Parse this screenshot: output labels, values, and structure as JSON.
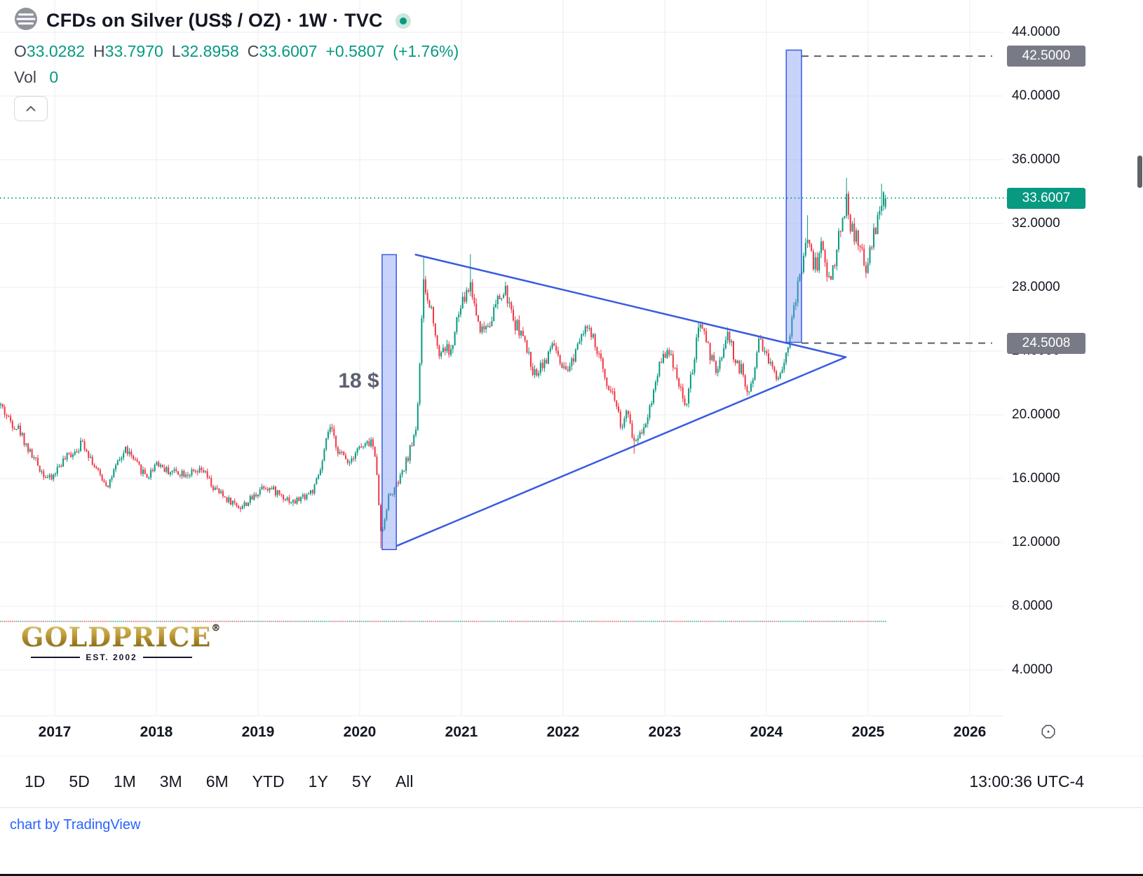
{
  "header": {
    "title": "CFDs on Silver (US$ / OZ) · 1W · TVC",
    "ohlc": {
      "o_label": "O",
      "o": "33.0282",
      "h_label": "H",
      "h": "33.7970",
      "l_label": "L",
      "l": "32.8958",
      "c_label": "C",
      "c": "33.6007",
      "change": "+0.5807",
      "change_pct": "(+1.76%)"
    },
    "vol_label": "Vol",
    "vol_value": "0"
  },
  "price_scale": {
    "ticks": [
      "44.0000",
      "40.0000",
      "36.0000",
      "32.0000",
      "28.0000",
      "24.0000",
      "20.0000",
      "16.0000",
      "12.0000",
      "8.0000",
      "4.0000"
    ],
    "tick_values": [
      44,
      40,
      36,
      32,
      28,
      24,
      20,
      16,
      12,
      8,
      4
    ],
    "badges": [
      {
        "text": "42.5000",
        "value": 42.5,
        "type": "gray"
      },
      {
        "text": "33.6007",
        "value": 33.6007,
        "type": "green"
      },
      {
        "text": "24.5008",
        "value": 24.5008,
        "type": "gray"
      }
    ]
  },
  "time_scale": {
    "years": [
      "2017",
      "2018",
      "2019",
      "2020",
      "2021",
      "2022",
      "2023",
      "2024",
      "2025",
      "2026"
    ],
    "year_values": [
      2017,
      2018,
      2019,
      2020,
      2021,
      2022,
      2023,
      2024,
      2025,
      2026
    ]
  },
  "toolbar": {
    "ranges": [
      "1D",
      "5D",
      "1M",
      "3M",
      "6M",
      "YTD",
      "1Y",
      "5Y",
      "All"
    ],
    "clock": "13:00:36 UTC-4"
  },
  "footer": {
    "link": "chart by TradingView"
  },
  "watermark": {
    "brand": "GOLDPRICE",
    "reg": "®",
    "est": "EST. 2002"
  },
  "colors": {
    "up": "#089981",
    "down": "#f23645",
    "grid": "#eceef2",
    "drawing_blue": "#3a5be0",
    "box_fill": "rgba(110,140,248,0.38)",
    "dashed_gray": "#5a5f6a",
    "current_price": "#089981"
  },
  "chart_data": {
    "type": "candlestick",
    "symbol": "CFDs on Silver (US$ / OZ)",
    "interval": "1W",
    "exchange": "TVC",
    "x_range_years": [
      2016.47,
      2026.45
    ],
    "y_axis_range_visible": [
      1.2,
      46.0
    ],
    "grid": true,
    "last_price": 33.6007,
    "last_candle": {
      "open": 33.0282,
      "high": 33.797,
      "low": 32.8958,
      "close": 33.6007
    },
    "volume": {
      "value": 0,
      "baseline_price": 7.05
    },
    "anchors": [
      [
        2016.47,
        20.6
      ],
      [
        2016.55,
        19.7
      ],
      [
        2016.65,
        19.1
      ],
      [
        2016.75,
        17.7
      ],
      [
        2016.88,
        16.4
      ],
      [
        2016.96,
        15.9
      ],
      [
        2017.05,
        16.9
      ],
      [
        2017.15,
        17.5
      ],
      [
        2017.28,
        18.3
      ],
      [
        2017.42,
        16.4
      ],
      [
        2017.52,
        15.6
      ],
      [
        2017.62,
        16.9
      ],
      [
        2017.7,
        17.9
      ],
      [
        2017.8,
        16.9
      ],
      [
        2017.92,
        16.1
      ],
      [
        2018.0,
        17.1
      ],
      [
        2018.1,
        16.5
      ],
      [
        2018.25,
        16.4
      ],
      [
        2018.38,
        16.3
      ],
      [
        2018.46,
        16.5
      ],
      [
        2018.56,
        15.4
      ],
      [
        2018.7,
        14.7
      ],
      [
        2018.83,
        14.2
      ],
      [
        2018.95,
        14.8
      ],
      [
        2019.05,
        15.6
      ],
      [
        2019.2,
        15.1
      ],
      [
        2019.35,
        14.5
      ],
      [
        2019.45,
        14.9
      ],
      [
        2019.55,
        15.3
      ],
      [
        2019.63,
        16.9
      ],
      [
        2019.7,
        19.3
      ],
      [
        2019.8,
        17.6
      ],
      [
        2019.9,
        17.1
      ],
      [
        2019.97,
        17.9
      ],
      [
        2020.05,
        18.0
      ],
      [
        2020.12,
        18.4
      ],
      [
        2020.17,
        16.4
      ],
      [
        2020.21,
        12.3
      ],
      [
        2020.28,
        14.8
      ],
      [
        2020.35,
        15.4
      ],
      [
        2020.42,
        16.3
      ],
      [
        2020.5,
        17.9
      ],
      [
        2020.56,
        19.4
      ],
      [
        2020.6,
        24.5
      ],
      [
        2020.63,
        28.3
      ],
      [
        2020.67,
        27.0
      ],
      [
        2020.72,
        26.4
      ],
      [
        2020.77,
        23.8
      ],
      [
        2020.83,
        24.3
      ],
      [
        2020.9,
        23.9
      ],
      [
        2020.96,
        26.0
      ],
      [
        2021.02,
        27.2
      ],
      [
        2021.09,
        28.2
      ],
      [
        2021.15,
        26.2
      ],
      [
        2021.2,
        25.3
      ],
      [
        2021.28,
        25.9
      ],
      [
        2021.36,
        27.2
      ],
      [
        2021.44,
        27.7
      ],
      [
        2021.5,
        26.0
      ],
      [
        2021.58,
        25.3
      ],
      [
        2021.65,
        23.9
      ],
      [
        2021.72,
        22.5
      ],
      [
        2021.78,
        23.2
      ],
      [
        2021.85,
        23.5
      ],
      [
        2021.9,
        24.7
      ],
      [
        2021.97,
        23.0
      ],
      [
        2022.03,
        22.5
      ],
      [
        2022.1,
        23.6
      ],
      [
        2022.17,
        25.2
      ],
      [
        2022.22,
        25.6
      ],
      [
        2022.3,
        24.6
      ],
      [
        2022.38,
        23.1
      ],
      [
        2022.45,
        21.8
      ],
      [
        2022.52,
        20.9
      ],
      [
        2022.57,
        19.2
      ],
      [
        2022.63,
        20.1
      ],
      [
        2022.7,
        18.3
      ],
      [
        2022.76,
        18.9
      ],
      [
        2022.82,
        19.7
      ],
      [
        2022.88,
        21.2
      ],
      [
        2022.95,
        23.3
      ],
      [
        2023.0,
        24.0
      ],
      [
        2023.08,
        23.4
      ],
      [
        2023.15,
        21.8
      ],
      [
        2023.2,
        20.4
      ],
      [
        2023.27,
        22.7
      ],
      [
        2023.33,
        25.2
      ],
      [
        2023.38,
        25.6
      ],
      [
        2023.45,
        23.6
      ],
      [
        2023.52,
        22.5
      ],
      [
        2023.58,
        24.4
      ],
      [
        2023.63,
        25.0
      ],
      [
        2023.7,
        23.2
      ],
      [
        2023.76,
        22.8
      ],
      [
        2023.82,
        21.2
      ],
      [
        2023.88,
        22.8
      ],
      [
        2023.93,
        25.0
      ],
      [
        2023.98,
        24.1
      ],
      [
        2024.03,
        23.3
      ],
      [
        2024.1,
        22.4
      ],
      [
        2024.17,
        23.2
      ],
      [
        2024.23,
        25.1
      ],
      [
        2024.3,
        27.7
      ],
      [
        2024.36,
        29.8
      ],
      [
        2024.4,
        31.2
      ],
      [
        2024.45,
        29.6
      ],
      [
        2024.5,
        29.5
      ],
      [
        2024.55,
        30.9
      ],
      [
        2024.6,
        28.4
      ],
      [
        2024.65,
        29.0
      ],
      [
        2024.7,
        30.7
      ],
      [
        2024.75,
        32.3
      ],
      [
        2024.79,
        33.7
      ],
      [
        2024.83,
        31.7
      ],
      [
        2024.88,
        31.1
      ],
      [
        2024.93,
        30.2
      ],
      [
        2024.98,
        29.2
      ],
      [
        2025.03,
        30.4
      ],
      [
        2025.08,
        32.0
      ],
      [
        2025.12,
        32.6
      ],
      [
        2025.14,
        33.5
      ],
      [
        2025.18,
        33.6
      ]
    ],
    "spikes": [
      {
        "t": 2020.21,
        "low": 11.64
      },
      {
        "t": 2020.63,
        "high": 29.86
      },
      {
        "t": 2021.09,
        "high": 30.08
      },
      {
        "t": 2022.7,
        "low": 17.56
      },
      {
        "t": 2018.83,
        "low": 13.9
      },
      {
        "t": 2019.35,
        "low": 14.27
      },
      {
        "t": 2024.4,
        "high": 32.52
      },
      {
        "t": 2024.79,
        "high": 34.87
      },
      {
        "t": 2025.14,
        "high": 34.5
      }
    ],
    "annotations": {
      "measure_boxes": [
        {
          "t1": 2020.22,
          "t2": 2020.36,
          "p1": 11.55,
          "p2": 30.05
        },
        {
          "t1": 2024.195,
          "t2": 2024.345,
          "p1": 24.55,
          "p2": 42.88
        }
      ],
      "triangle": {
        "upper": [
          [
            2020.55,
            30.05
          ],
          [
            2024.78,
            23.62
          ]
        ],
        "lower": [
          [
            2020.37,
            11.8
          ],
          [
            2024.78,
            23.62
          ]
        ]
      },
      "dashed_levels": [
        {
          "price": 42.5,
          "t_start": 2024.345,
          "t_end": 2026.22
        },
        {
          "price": 24.5008,
          "t_start": 2024.345,
          "t_end": 2026.22
        }
      ],
      "price_label": {
        "t": 2019.99,
        "p": 22.1,
        "text": "18 $"
      },
      "current_price_line": 33.6007
    }
  }
}
